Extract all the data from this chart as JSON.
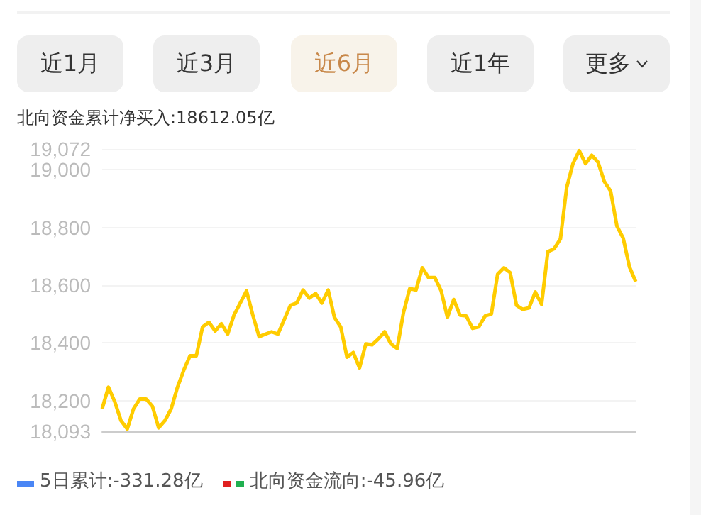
{
  "chart_data": {
    "type": "line",
    "title": "北向资金累计净买入:18612.05亿",
    "annotations": [
      "近1月",
      "近3月",
      "近6月",
      "近1年",
      "更多",
      "5日累计:-331.28亿",
      "北向资金流向:-45.96亿"
    ],
    "categories": [
      null,
      null,
      null,
      null,
      null,
      null,
      null,
      null,
      null,
      null,
      null,
      null,
      null,
      null,
      null,
      null,
      null,
      null,
      null,
      null,
      null,
      null,
      null,
      null,
      null,
      null,
      null,
      null,
      null,
      null,
      null,
      null,
      null,
      null,
      null,
      null,
      null,
      null,
      null,
      null,
      null,
      null,
      null,
      null,
      null,
      null,
      null,
      null,
      null,
      null,
      null,
      null,
      null,
      null,
      null,
      null,
      null,
      null,
      null,
      null,
      null,
      null,
      null,
      null,
      null,
      null,
      null,
      null,
      null,
      null,
      null,
      null,
      null,
      null,
      null,
      null,
      null,
      null,
      null,
      null,
      null,
      null,
      null,
      null,
      null,
      null
    ],
    "series": [
      {
        "color": "#ffcc00",
        "values": [
          18171,
          18246,
          18196,
          18130,
          18101,
          18171,
          18205,
          18205,
          18180,
          18105,
          18130,
          18171,
          18246,
          18305,
          18355,
          18355,
          18455,
          18471,
          18441,
          18466,
          18430,
          18496,
          18538,
          18580,
          18496,
          18421,
          18430,
          18438,
          18430,
          18480,
          18530,
          18538,
          18583,
          18555,
          18571,
          18538,
          18583,
          18488,
          18455,
          18350,
          18366,
          18313,
          18396,
          18393,
          18413,
          18438,
          18396,
          18380,
          18505,
          18588,
          18583,
          18660,
          18626,
          18626,
          18580,
          18488,
          18550,
          18496,
          18493,
          18450,
          18455,
          18493,
          18500,
          18638,
          18660,
          18643,
          18530,
          18516,
          18521,
          18576,
          18533,
          18716,
          18726,
          18760,
          18938,
          19021,
          19066,
          19021,
          19050,
          19026,
          18959,
          18926,
          18805,
          18763,
          18663,
          18612
        ]
      }
    ],
    "ylim": [
      18093,
      19072
    ],
    "yticks": [
      {
        "value": 18093,
        "label": "18,093"
      },
      {
        "value": 18200,
        "label": "18,200"
      },
      {
        "value": 18400,
        "label": "18,400"
      },
      {
        "value": 18600,
        "label": "18,600"
      },
      {
        "value": 18800,
        "label": "18,800"
      },
      {
        "value": 19000,
        "label": "19,000"
      },
      {
        "value": 19072,
        "label": "19,072"
      }
    ],
    "grid": "y",
    "line_style": "solid"
  }
}
